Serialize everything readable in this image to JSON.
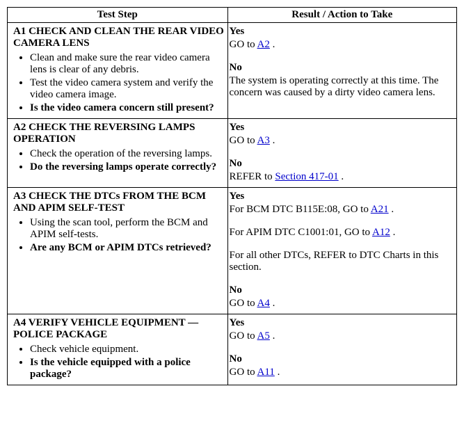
{
  "headers": {
    "left": "Test Step",
    "right": "Result / Action to Take"
  },
  "steps": [
    {
      "title": "A1 CHECK AND CLEAN THE REAR VIDEO CAMERA LENS",
      "items": [
        {
          "text": "Clean and make sure the rear video camera lens is clear of any debris.",
          "bold": false
        },
        {
          "text": "Test the video camera system and verify the video camera image.",
          "bold": false
        },
        {
          "text": "Is the video camera concern still present?",
          "bold": true
        }
      ],
      "result": {
        "yes": [
          {
            "pre": "GO to ",
            "link": "A2",
            "post": " ."
          }
        ],
        "no_text": "The system is operating correctly at this time. The concern was caused by a dirty video camera lens."
      }
    },
    {
      "title": "A2 CHECK THE REVERSING LAMPS OPERATION",
      "items": [
        {
          "text": "Check the operation of the reversing lamps.",
          "bold": false
        },
        {
          "text": "Do the reversing lamps operate correctly?",
          "bold": true
        }
      ],
      "result": {
        "yes": [
          {
            "pre": "GO to ",
            "link": "A3",
            "post": " ."
          }
        ],
        "no": [
          {
            "pre": "REFER to ",
            "link": "Section 417-01",
            "post": " ."
          }
        ]
      }
    },
    {
      "title": "A3 CHECK THE DTCs FROM THE BCM AND APIM SELF-TEST",
      "items": [
        {
          "text": "Using the scan tool, perform the BCM and APIM self-tests.",
          "bold": false
        },
        {
          "text": "Are any BCM or APIM DTCs retrieved?",
          "bold": true
        }
      ],
      "result": {
        "yes": [
          {
            "pre": "For BCM DTC B115E:08, GO to ",
            "link": "A21",
            "post": " ."
          },
          {
            "gap": true
          },
          {
            "pre": "For APIM DTC C1001:01, GO to ",
            "link": "A12",
            "post": " ."
          },
          {
            "gap": true
          },
          {
            "pre": "For all other DTCs, REFER to DTC Charts in this section.",
            "link": null,
            "post": ""
          }
        ],
        "no": [
          {
            "pre": "GO to ",
            "link": "A4",
            "post": " ."
          }
        ]
      }
    },
    {
      "title": "A4 VERIFY VEHICLE EQUIPMENT — POLICE PACKAGE",
      "items": [
        {
          "text": "Check vehicle equipment.",
          "bold": false
        },
        {
          "text": "Is the vehicle equipped with a police package?",
          "bold": true
        }
      ],
      "result": {
        "yes": [
          {
            "pre": "GO to ",
            "link": "A5",
            "post": " ."
          }
        ],
        "no": [
          {
            "pre": "GO to ",
            "link": "A11",
            "post": " ."
          }
        ]
      }
    }
  ]
}
